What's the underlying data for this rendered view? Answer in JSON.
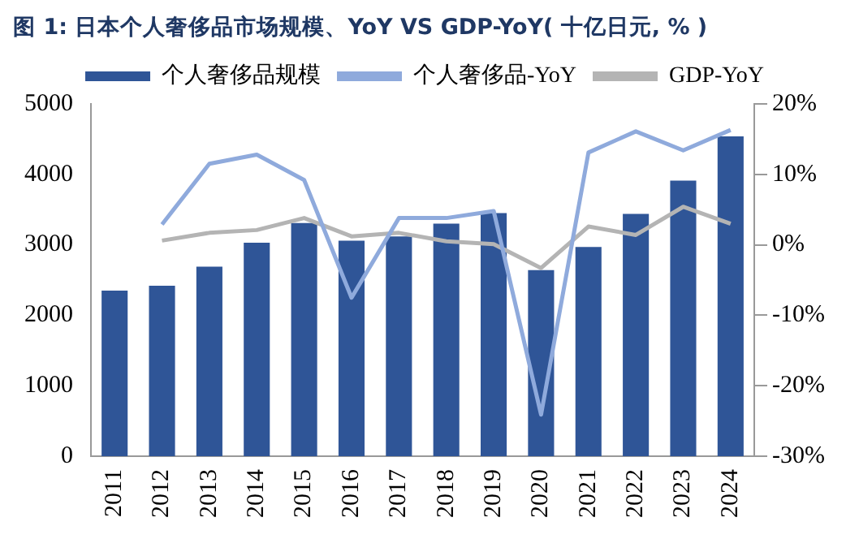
{
  "chart_data": {
    "type": "bar",
    "title": "图  1: 日本个人奢侈品市场规模、YoY VS GDP-YoY( 十亿日元, % )",
    "categories": [
      "2011",
      "2012",
      "2013",
      "2014",
      "2015",
      "2016",
      "2017",
      "2018",
      "2019",
      "2020",
      "2021",
      "2022",
      "2023",
      "2024"
    ],
    "series": [
      {
        "name": "个人奢侈品规模",
        "color": "#2f5597",
        "values": [
          2350,
          2420,
          2690,
          3030,
          3310,
          3060,
          3120,
          3300,
          3450,
          2640,
          2970,
          3440,
          3910,
          4540
        ]
      },
      {
        "name": "个人奢侈品-YoY",
        "type": "line",
        "axis": "y2",
        "color": "#8faadc",
        "values": [
          null,
          2.9,
          11.5,
          12.8,
          9.2,
          -7.5,
          3.8,
          3.8,
          4.8,
          -24.1,
          13.1,
          16.1,
          13.4,
          16.3
        ]
      },
      {
        "name": "GDP-YoY",
        "type": "line",
        "axis": "y2",
        "color": "#b4b4b4",
        "values": [
          null,
          0.6,
          1.7,
          2.1,
          3.8,
          1.2,
          1.7,
          0.5,
          0.1,
          -3.3,
          2.6,
          1.4,
          5.4,
          3.0
        ]
      }
    ],
    "ylim": [
      0,
      5000
    ],
    "yticks": [
      0,
      1000,
      2000,
      3000,
      4000,
      5000
    ],
    "y2lim": [
      -30,
      20
    ],
    "y2ticks": [
      {
        "value": -30,
        "label": "-30%"
      },
      {
        "value": -20,
        "label": "-20%"
      },
      {
        "value": -10,
        "label": "-10%"
      },
      {
        "value": 0,
        "label": "0%"
      },
      {
        "value": 10,
        "label": "10%"
      },
      {
        "value": 20,
        "label": "20%"
      }
    ],
    "grid": false,
    "legend": "top",
    "marker": "none",
    "line_style": "solid"
  }
}
